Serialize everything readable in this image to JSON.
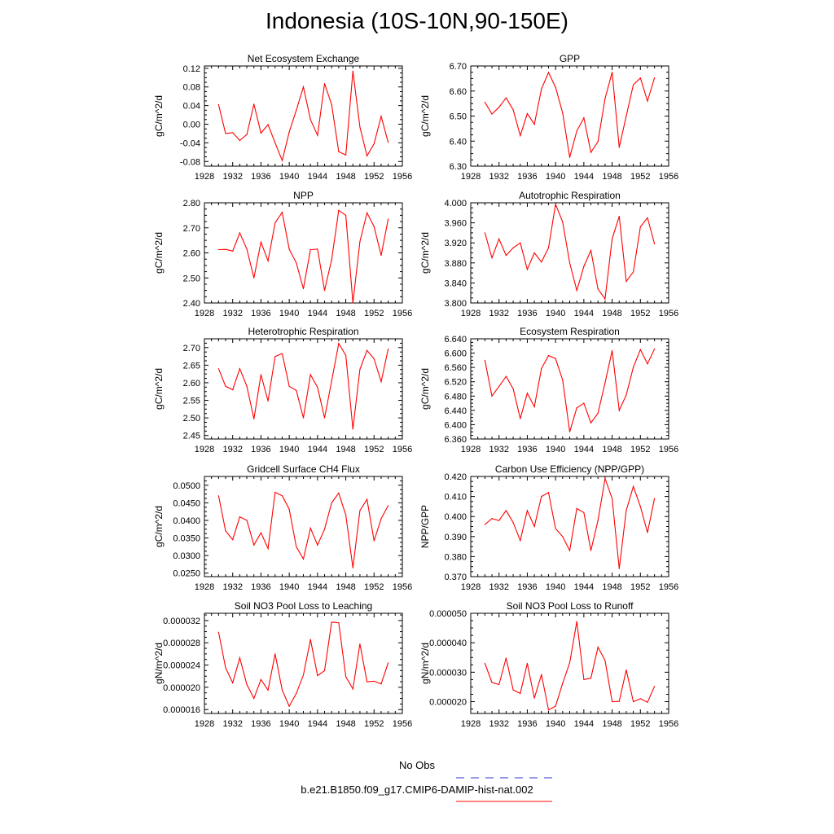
{
  "figure": {
    "title": "Indonesia (10S-10N,90-150E)",
    "legend": [
      {
        "label": "No Obs",
        "color": "#3333cc",
        "dash": true
      },
      {
        "label": "b.e21.B1850.f09_g17.CMIP6-DAMIP-hist-nat.002",
        "color": "#ff0000",
        "dash": false
      }
    ],
    "series_color": "#ff0000"
  },
  "chart_data": [
    {
      "type": "line",
      "title": "Net Ecosystem Exchange",
      "ylabel": "gC/m^2/d",
      "xlim": [
        1928,
        1956
      ],
      "xticks": [
        "1928",
        "1932",
        "1936",
        "1940",
        "1944",
        "1948",
        "1952",
        "1956"
      ],
      "ylim": [
        -0.09,
        0.125
      ],
      "yticks": [
        "-0.08",
        "-0.04",
        "0.00",
        "0.04",
        "0.08",
        "0.12"
      ],
      "x": [
        1930,
        1931,
        1932,
        1933,
        1934,
        1935,
        1936,
        1937,
        1938,
        1939,
        1940,
        1941,
        1942,
        1943,
        1944,
        1945,
        1946,
        1947,
        1948,
        1949,
        1950,
        1951,
        1952,
        1953,
        1954
      ],
      "values": [
        0.042,
        -0.02,
        -0.018,
        -0.035,
        -0.022,
        0.043,
        -0.019,
        -0.001,
        -0.04,
        -0.078,
        -0.017,
        0.03,
        0.08,
        0.01,
        -0.024,
        0.087,
        0.042,
        -0.059,
        -0.066,
        0.114,
        -0.006,
        -0.068,
        -0.042,
        0.017,
        -0.039
      ]
    },
    {
      "type": "line",
      "title": "GPP",
      "ylabel": "gC/m^2/d",
      "xlim": [
        1928,
        1956
      ],
      "xticks": [
        "1928",
        "1932",
        "1936",
        "1940",
        "1944",
        "1948",
        "1952",
        "1956"
      ],
      "ylim": [
        6.3,
        6.7
      ],
      "yticks": [
        "6.30",
        "6.40",
        "6.50",
        "6.60",
        "6.70"
      ],
      "x": [
        1930,
        1931,
        1932,
        1933,
        1934,
        1935,
        1936,
        1937,
        1938,
        1939,
        1940,
        1941,
        1942,
        1943,
        1944,
        1945,
        1946,
        1947,
        1948,
        1949,
        1950,
        1951,
        1952,
        1953,
        1954
      ],
      "values": [
        6.555,
        6.508,
        6.535,
        6.573,
        6.525,
        6.422,
        6.51,
        6.467,
        6.608,
        6.674,
        6.615,
        6.513,
        6.335,
        6.44,
        6.493,
        6.355,
        6.398,
        6.57,
        6.675,
        6.375,
        6.5,
        6.625,
        6.652,
        6.56,
        6.653
      ]
    },
    {
      "type": "line",
      "title": "NPP",
      "ylabel": "gC/m^2/d",
      "xlim": [
        1928,
        1956
      ],
      "xticks": [
        "1928",
        "1932",
        "1936",
        "1940",
        "1944",
        "1948",
        "1952",
        "1956"
      ],
      "ylim": [
        2.4,
        2.8
      ],
      "yticks": [
        "2.40",
        "2.50",
        "2.60",
        "2.70",
        "2.80"
      ],
      "x": [
        1930,
        1931,
        1932,
        1933,
        1934,
        1935,
        1936,
        1937,
        1938,
        1939,
        1940,
        1941,
        1942,
        1943,
        1944,
        1945,
        1946,
        1947,
        1948,
        1949,
        1950,
        1951,
        1952,
        1953,
        1954
      ],
      "values": [
        2.613,
        2.614,
        2.607,
        2.68,
        2.615,
        2.5,
        2.643,
        2.568,
        2.72,
        2.762,
        2.615,
        2.56,
        2.457,
        2.613,
        2.615,
        2.45,
        2.573,
        2.77,
        2.75,
        2.4,
        2.645,
        2.76,
        2.705,
        2.59,
        2.735
      ]
    },
    {
      "type": "line",
      "title": "Autotrophic Respiration",
      "ylabel": "gC/m^2/d",
      "xlim": [
        1928,
        1956
      ],
      "xticks": [
        "1928",
        "1932",
        "1936",
        "1940",
        "1944",
        "1948",
        "1952",
        "1956"
      ],
      "ylim": [
        3.8,
        4.0
      ],
      "yticks": [
        "3.800",
        "3.840",
        "3.880",
        "3.920",
        "3.960",
        "4.000"
      ],
      "x": [
        1930,
        1931,
        1932,
        1933,
        1934,
        1935,
        1936,
        1937,
        1938,
        1939,
        1940,
        1941,
        1942,
        1943,
        1944,
        1945,
        1946,
        1947,
        1948,
        1949,
        1950,
        1951,
        1952,
        1953,
        1954
      ],
      "values": [
        3.94,
        3.89,
        3.928,
        3.895,
        3.91,
        3.92,
        3.867,
        3.9,
        3.882,
        3.91,
        3.997,
        3.962,
        3.88,
        3.825,
        3.873,
        3.905,
        3.828,
        3.808,
        3.928,
        3.973,
        3.843,
        3.862,
        3.952,
        3.97,
        3.918
      ]
    },
    {
      "type": "line",
      "title": "Heterotrophic Respiration",
      "ylabel": "gC/m^2/d",
      "xlim": [
        1928,
        1956
      ],
      "xticks": [
        "1928",
        "1932",
        "1936",
        "1940",
        "1944",
        "1948",
        "1952",
        "1956"
      ],
      "ylim": [
        2.44,
        2.725
      ],
      "yticks": [
        "2.45",
        "2.50",
        "2.55",
        "2.60",
        "2.65",
        "2.70"
      ],
      "x": [
        1930,
        1931,
        1932,
        1933,
        1934,
        1935,
        1936,
        1937,
        1938,
        1939,
        1940,
        1941,
        1942,
        1943,
        1944,
        1945,
        1946,
        1947,
        1948,
        1949,
        1950,
        1951,
        1952,
        1953,
        1954
      ],
      "values": [
        2.64,
        2.59,
        2.58,
        2.64,
        2.59,
        2.497,
        2.623,
        2.548,
        2.675,
        2.683,
        2.59,
        2.578,
        2.5,
        2.623,
        2.587,
        2.5,
        2.605,
        2.712,
        2.678,
        2.468,
        2.638,
        2.692,
        2.668,
        2.603,
        2.696
      ]
    },
    {
      "type": "line",
      "title": "Ecosystem Respiration",
      "ylabel": "gC/m^2/d",
      "xlim": [
        1928,
        1956
      ],
      "xticks": [
        "1928",
        "1932",
        "1936",
        "1940",
        "1944",
        "1948",
        "1952",
        "1956"
      ],
      "ylim": [
        6.36,
        6.64
      ],
      "yticks": [
        "6.360",
        "6.400",
        "6.440",
        "6.480",
        "6.520",
        "6.560",
        "6.600",
        "6.640"
      ],
      "x": [
        1930,
        1931,
        1932,
        1933,
        1934,
        1935,
        1936,
        1937,
        1938,
        1939,
        1940,
        1941,
        1942,
        1943,
        1944,
        1945,
        1946,
        1947,
        1948,
        1949,
        1950,
        1951,
        1952,
        1953,
        1954
      ],
      "values": [
        6.58,
        6.48,
        6.507,
        6.535,
        6.5,
        6.417,
        6.488,
        6.45,
        6.557,
        6.593,
        6.585,
        6.525,
        6.38,
        6.447,
        6.46,
        6.405,
        6.432,
        6.517,
        6.607,
        6.44,
        6.483,
        6.56,
        6.61,
        6.57,
        6.612
      ]
    },
    {
      "type": "line",
      "title": "Gridcell Surface CH4 Flux",
      "ylabel": "gC/m^2/d",
      "xlim": [
        1928,
        1956
      ],
      "xticks": [
        "1928",
        "1932",
        "1936",
        "1940",
        "1944",
        "1948",
        "1952",
        "1956"
      ],
      "ylim": [
        0.024,
        0.0525
      ],
      "yticks": [
        "0.0250",
        "0.0300",
        "0.0350",
        "0.0400",
        "0.0450",
        "0.0500"
      ],
      "x": [
        1930,
        1931,
        1932,
        1933,
        1934,
        1935,
        1936,
        1937,
        1938,
        1939,
        1940,
        1941,
        1942,
        1943,
        1944,
        1945,
        1946,
        1947,
        1948,
        1949,
        1950,
        1951,
        1952,
        1953,
        1954
      ],
      "values": [
        0.047,
        0.037,
        0.0345,
        0.041,
        0.04,
        0.033,
        0.0365,
        0.032,
        0.048,
        0.047,
        0.0432,
        0.0325,
        0.029,
        0.0378,
        0.033,
        0.0375,
        0.045,
        0.0478,
        0.0415,
        0.0265,
        0.0428,
        0.046,
        0.0342,
        0.0405,
        0.0442
      ]
    },
    {
      "type": "line",
      "title": "Carbon Use Efficiency (NPP/GPP)",
      "ylabel": "NPP/GPP",
      "xlim": [
        1928,
        1956
      ],
      "xticks": [
        "1928",
        "1932",
        "1936",
        "1940",
        "1944",
        "1948",
        "1952",
        "1956"
      ],
      "ylim": [
        0.37,
        0.42
      ],
      "yticks": [
        "0.370",
        "0.380",
        "0.390",
        "0.400",
        "0.410",
        "0.420"
      ],
      "x": [
        1930,
        1931,
        1932,
        1933,
        1934,
        1935,
        1936,
        1937,
        1938,
        1939,
        1940,
        1941,
        1942,
        1943,
        1944,
        1945,
        1946,
        1947,
        1948,
        1949,
        1950,
        1951,
        1952,
        1953,
        1954
      ],
      "values": [
        0.396,
        0.399,
        0.398,
        0.403,
        0.397,
        0.388,
        0.403,
        0.395,
        0.41,
        0.412,
        0.394,
        0.39,
        0.383,
        0.404,
        0.402,
        0.383,
        0.398,
        0.419,
        0.409,
        0.374,
        0.403,
        0.415,
        0.405,
        0.392,
        0.409
      ]
    },
    {
      "type": "line",
      "title": "Soil NO3 Pool Loss to Leaching",
      "ylabel": "gN/m^2/d",
      "xlim": [
        1928,
        1956
      ],
      "xticks": [
        "1928",
        "1932",
        "1936",
        "1940",
        "1944",
        "1948",
        "1952",
        "1956"
      ],
      "ylim": [
        1.53e-05,
        3.33e-05
      ],
      "yticks": [
        "0.000016",
        "0.000020",
        "0.000024",
        "0.000028",
        "0.000032"
      ],
      "x": [
        1930,
        1931,
        1932,
        1933,
        1934,
        1935,
        1936,
        1937,
        1938,
        1939,
        1940,
        1941,
        1942,
        1943,
        1944,
        1945,
        1946,
        1947,
        1948,
        1949,
        1950,
        1951,
        1952,
        1953,
        1954
      ],
      "values": [
        2.99e-05,
        2.35e-05,
        2.08e-05,
        2.53e-05,
        2.05e-05,
        1.8e-05,
        2.14e-05,
        1.95e-05,
        2.6e-05,
        1.95e-05,
        1.66e-05,
        1.89e-05,
        2.22e-05,
        2.86e-05,
        2.21e-05,
        2.3e-05,
        3.17e-05,
        3.16e-05,
        2.19e-05,
        1.97e-05,
        2.78e-05,
        2.1e-05,
        2.11e-05,
        2.06e-05,
        2.44e-05
      ]
    },
    {
      "type": "line",
      "title": "Soil NO3 Pool Loss to Runoff",
      "ylabel": "gN/m^2/d",
      "xlim": [
        1928,
        1956
      ],
      "xticks": [
        "1928",
        "1932",
        "1936",
        "1940",
        "1944",
        "1948",
        "1952",
        "1956"
      ],
      "ylim": [
        1.6e-05,
        5e-05
      ],
      "yticks": [
        "0.000020",
        "0.000030",
        "0.000040",
        "0.000050"
      ],
      "x": [
        1930,
        1931,
        1932,
        1933,
        1934,
        1935,
        1936,
        1937,
        1938,
        1939,
        1940,
        1941,
        1942,
        1943,
        1944,
        1945,
        1946,
        1947,
        1948,
        1949,
        1950,
        1951,
        1952,
        1953,
        1954
      ],
      "values": [
        3.3e-05,
        2.65e-05,
        2.58e-05,
        3.48e-05,
        2.4e-05,
        2.28e-05,
        3.3e-05,
        2.12e-05,
        2.92e-05,
        1.72e-05,
        1.85e-05,
        2.62e-05,
        3.32e-05,
        4.72e-05,
        2.75e-05,
        2.8e-05,
        3.85e-05,
        3.4e-05,
        2e-05,
        2.01e-05,
        3.08e-05,
        2e-05,
        2.1e-05,
        1.98e-05,
        2.52e-05
      ]
    }
  ]
}
